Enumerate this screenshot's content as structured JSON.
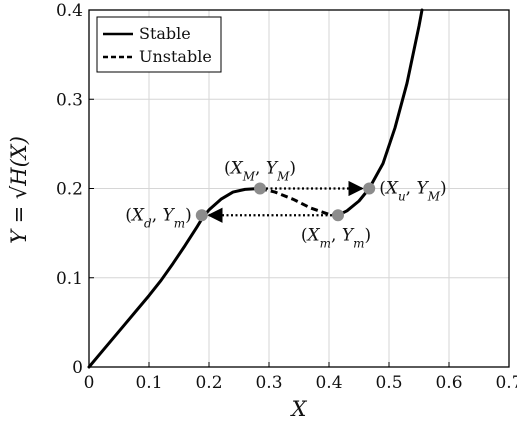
{
  "chart_data": {
    "type": "line",
    "xlabel": "X",
    "ylabel": "Y = √H(X)",
    "xlim": [
      0,
      0.7
    ],
    "ylim": [
      0,
      0.4
    ],
    "x_ticks": [
      "0",
      "0.1",
      "0.2",
      "0.3",
      "0.4",
      "0.5",
      "0.6",
      "0.7"
    ],
    "y_ticks": [
      "0",
      "0.1",
      "0.2",
      "0.3",
      "0.4"
    ],
    "grid": true,
    "legend_position": "top-left",
    "series": [
      {
        "name": "Stable",
        "style": "solid",
        "color": "#000000",
        "x": [
          0,
          0.02,
          0.04,
          0.06,
          0.08,
          0.1,
          0.12,
          0.14,
          0.16,
          0.18,
          0.19,
          0.2,
          0.22,
          0.24,
          0.26,
          0.285
        ],
        "y": [
          0,
          0.016,
          0.032,
          0.048,
          0.064,
          0.08,
          0.097,
          0.116,
          0.136,
          0.157,
          0.168,
          0.176,
          0.188,
          0.196,
          0.199,
          0.2
        ]
      },
      {
        "name": "Unstable",
        "style": "dashed",
        "color": "#000000",
        "x": [
          0.285,
          0.31,
          0.34,
          0.37,
          0.4,
          0.415
        ],
        "y": [
          0.2,
          0.196,
          0.188,
          0.178,
          0.171,
          0.17
        ]
      },
      {
        "name": "Stable",
        "style": "solid",
        "color": "#000000",
        "x": [
          0.415,
          0.43,
          0.45,
          0.467,
          0.49,
          0.51,
          0.53,
          0.55,
          0.555
        ],
        "y": [
          0.17,
          0.175,
          0.186,
          0.2,
          0.228,
          0.268,
          0.318,
          0.382,
          0.4
        ]
      }
    ],
    "points": [
      {
        "label": "(X_M, Y_M)",
        "x": 0.285,
        "y": 0.2,
        "color": "#8c8c8c"
      },
      {
        "label": "(X_m, Y_m)",
        "x": 0.415,
        "y": 0.17,
        "color": "#8c8c8c"
      },
      {
        "label": "(X_d, Y_m)",
        "x": 0.188,
        "y": 0.17,
        "color": "#8c8c8c"
      },
      {
        "label": "(X_u, Y_M)",
        "x": 0.467,
        "y": 0.2,
        "color": "#8c8c8c"
      }
    ],
    "arrows": [
      {
        "from": [
          0.285,
          0.2
        ],
        "to": [
          0.467,
          0.2
        ],
        "style": "dotted"
      },
      {
        "from": [
          0.415,
          0.17
        ],
        "to": [
          0.188,
          0.17
        ],
        "style": "dotted"
      }
    ],
    "legend": [
      {
        "label": "Stable",
        "style": "solid"
      },
      {
        "label": "Unstable",
        "style": "dashed"
      }
    ]
  }
}
